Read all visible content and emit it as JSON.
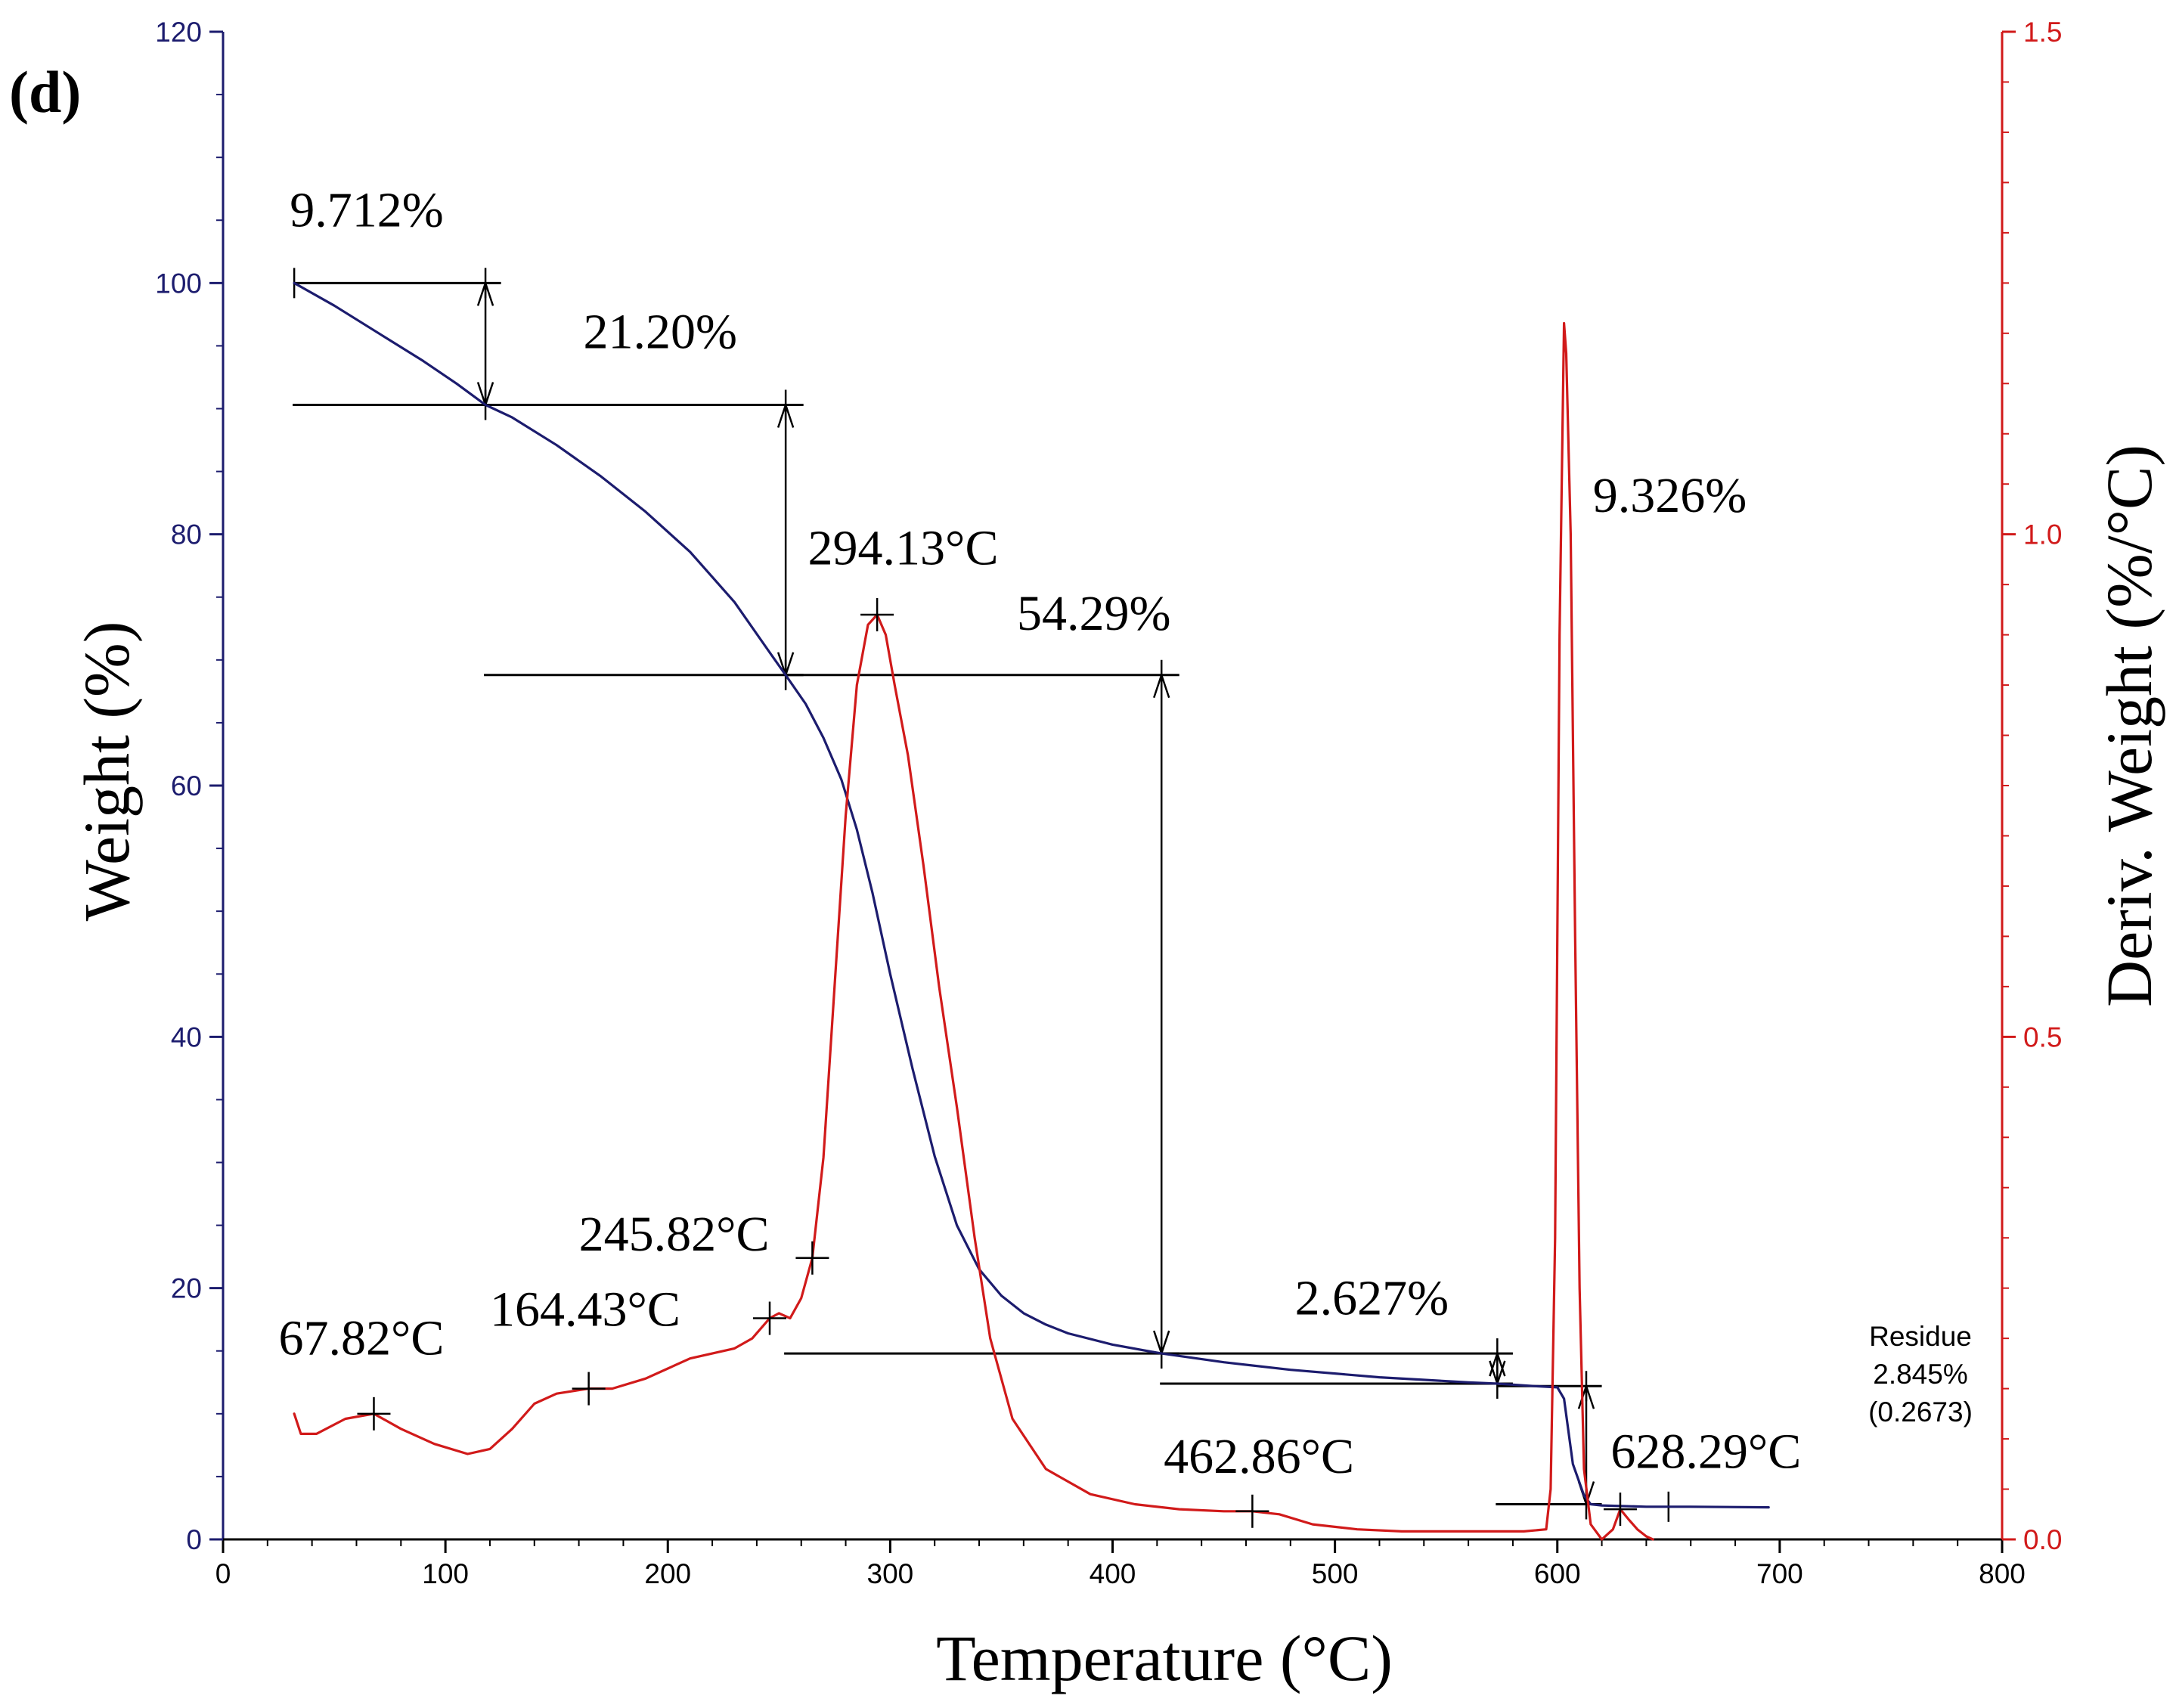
{
  "panel_label": "(d)",
  "chart_data": {
    "type": "line",
    "x": {
      "label": "Temperature (°C)",
      "lim": [
        0,
        800
      ],
      "ticks": [
        0,
        100,
        200,
        300,
        400,
        500,
        600,
        700,
        800
      ]
    },
    "y_left": {
      "label": "Weight (%)",
      "lim": [
        0,
        120
      ],
      "ticks": [
        0,
        20,
        40,
        60,
        80,
        100,
        120
      ],
      "color": "#1c1c6e"
    },
    "y_right": {
      "label": "Deriv. Weight (%/°C)",
      "lim": [
        0,
        1.5
      ],
      "ticks": [
        "0.0",
        "0.5",
        "1.0",
        "1.5"
      ],
      "color": "#d11a1a"
    },
    "series": [
      {
        "name": "Weight",
        "axis": "left",
        "color": "#1c1c6e",
        "x": [
          32,
          50,
          70,
          90,
          105,
          118,
          130,
          150,
          170,
          190,
          210,
          230,
          245,
          253,
          262,
          270,
          278,
          285,
          292,
          300,
          310,
          320,
          330,
          340,
          350,
          360,
          370,
          380,
          400,
          422,
          450,
          480,
          520,
          560,
          573,
          590,
          600,
          603,
          607,
          612,
          615,
          620,
          640,
          660,
          695
        ],
        "y": [
          100,
          98.2,
          96,
          93.8,
          92,
          90.3,
          89.3,
          87.1,
          84.6,
          81.8,
          78.6,
          74.6,
          70.8,
          68.8,
          66.5,
          63.8,
          60.5,
          56.5,
          51.5,
          45,
          37.5,
          30.5,
          25,
          21.5,
          19.4,
          18,
          17.1,
          16.4,
          15.5,
          14.8,
          14.1,
          13.5,
          12.9,
          12.5,
          12.4,
          12.2,
          12.1,
          11.2,
          6,
          3.5,
          2.8,
          2.7,
          2.6,
          2.6,
          2.55
        ]
      },
      {
        "name": "Deriv. Weight",
        "axis": "right",
        "color": "#d11a1a",
        "x": [
          32,
          35,
          42,
          55,
          67.82,
          80,
          95,
          110,
          120,
          130,
          140,
          150,
          164.43,
          175,
          190,
          200,
          210,
          220,
          230,
          238,
          245.82,
          250,
          255,
          260,
          265,
          270,
          275,
          280,
          285,
          290,
          294.13,
          298,
          302,
          308,
          315,
          322,
          330,
          338,
          345,
          355,
          370,
          390,
          410,
          430,
          450,
          462.86,
          475,
          490,
          510,
          530,
          560,
          585,
          595,
          597,
          599,
          601,
          603,
          604,
          606,
          608,
          610,
          612,
          615,
          620,
          625,
          628.29,
          632,
          636,
          640,
          643
        ],
        "y": [
          0.125,
          0.105,
          0.105,
          0.12,
          0.125,
          0.11,
          0.095,
          0.085,
          0.09,
          0.11,
          0.135,
          0.145,
          0.15,
          0.15,
          0.16,
          0.17,
          0.18,
          0.185,
          0.19,
          0.2,
          0.22,
          0.225,
          0.22,
          0.24,
          0.28,
          0.38,
          0.55,
          0.72,
          0.85,
          0.91,
          0.92,
          0.9,
          0.85,
          0.78,
          0.67,
          0.55,
          0.43,
          0.3,
          0.2,
          0.12,
          0.07,
          0.045,
          0.035,
          0.03,
          0.028,
          0.028,
          0.025,
          0.015,
          0.01,
          0.008,
          0.008,
          0.008,
          0.01,
          0.05,
          0.3,
          0.9,
          1.21,
          1.18,
          1.0,
          0.6,
          0.25,
          0.07,
          0.015,
          0.0,
          0.01,
          0.03,
          0.02,
          0.01,
          0.003,
          0.0
        ]
      }
    ],
    "annotations": [
      {
        "text": "9.712%",
        "x": 30,
        "y": 104.5,
        "axis": "left",
        "style": "serif"
      },
      {
        "text": "21.20%",
        "x": 162,
        "y": 94.8,
        "axis": "left",
        "style": "serif"
      },
      {
        "text": "294.13°C",
        "x": 263,
        "y": 77.6,
        "axis": "left",
        "style": "serif"
      },
      {
        "text": "54.29%",
        "x": 357,
        "y": 72.4,
        "axis": "left",
        "style": "serif"
      },
      {
        "text": "9.326%",
        "x": 616,
        "y": 81.8,
        "axis": "left",
        "style": "serif"
      },
      {
        "text": "245.82°C",
        "x": 160,
        "y": 23.0,
        "axis": "left",
        "style": "serif"
      },
      {
        "text": "164.43°C",
        "x": 120,
        "y": 17.0,
        "axis": "left",
        "style": "serif"
      },
      {
        "text": "67.82°C",
        "x": 25,
        "y": 14.7,
        "axis": "left",
        "style": "serif"
      },
      {
        "text": "2.627%",
        "x": 482,
        "y": 17.9,
        "axis": "left",
        "style": "serif"
      },
      {
        "text": "462.86°C",
        "x": 423,
        "y": 5.3,
        "axis": "left",
        "style": "serif"
      },
      {
        "text": "628.29°C",
        "x": 624,
        "y": 5.7,
        "axis": "left",
        "style": "serif"
      }
    ],
    "residue_note": [
      "Residue",
      "2.845%",
      "(0.2673)"
    ],
    "step_markers": [
      {
        "label": "9.712%",
        "x0": 32,
        "x1": 125,
        "y_from": 100,
        "y_to": 90.3,
        "arrow_x": 118
      },
      {
        "label": "21.20%",
        "x0": 118,
        "x1": 261,
        "y_from": 90.3,
        "y_to": 68.8,
        "arrow_x": 253
      },
      {
        "label": "54.29%",
        "x0": 253,
        "x1": 430,
        "y_from": 68.8,
        "y_to": 14.8,
        "arrow_x": 422
      },
      {
        "label": "2.627%",
        "x0": 422,
        "x1": 580,
        "y_from": 14.8,
        "y_to": 12.4,
        "arrow_x": 573
      },
      {
        "label": "9.326%",
        "x0": 573,
        "x1": 620,
        "y_from": 12.2,
        "y_to": 2.8,
        "arrow_x": 613
      }
    ],
    "peak_markers": [
      67.82,
      164.43,
      245.82,
      265,
      294.13,
      462.86,
      628.29
    ],
    "residue_markers": [
      650
    ]
  }
}
